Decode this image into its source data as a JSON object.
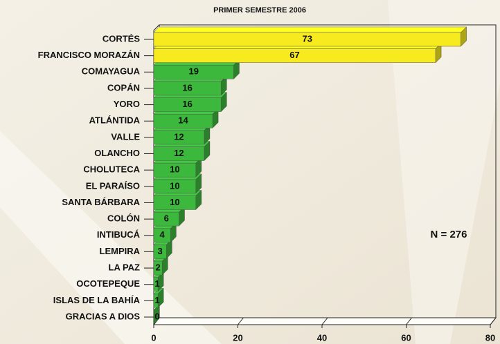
{
  "chart_data": {
    "type": "hbar3d",
    "title": "PRIMER SEMESTRE 2006",
    "categories": [
      "CORTÉS",
      "FRANCISCO MORAZÁN",
      "COMAYAGUA",
      "COPÁN",
      "YORO",
      "ATLÁNTIDA",
      "VALLE",
      "OLANCHO",
      "CHOLUTECA",
      "EL PARAÍSO",
      "SANTA BÁRBARA",
      "COLÓN",
      "INTIBUCÁ",
      "LEMPIRA",
      "LA PAZ",
      "OCOTEPEQUE",
      "ISLAS DE LA BAHÍA",
      "GRACIAS A DIOS"
    ],
    "values": [
      73,
      67,
      19,
      16,
      16,
      14,
      12,
      12,
      10,
      10,
      10,
      6,
      4,
      3,
      2,
      1,
      1,
      0
    ],
    "colors": [
      "#f7ea1f",
      "#f7ea1f",
      "#3cb83c",
      "#3cb83c",
      "#3cb83c",
      "#3cb83c",
      "#3cb83c",
      "#3cb83c",
      "#3cb83c",
      "#3cb83c",
      "#3cb83c",
      "#3cb83c",
      "#3cb83c",
      "#3cb83c",
      "#3cb83c",
      "#3cb83c",
      "#3cb83c",
      "#3cb83c"
    ],
    "xlim": [
      0,
      80
    ],
    "xticks": [
      0,
      20,
      40,
      60,
      80
    ],
    "annotation": "N = 276"
  }
}
